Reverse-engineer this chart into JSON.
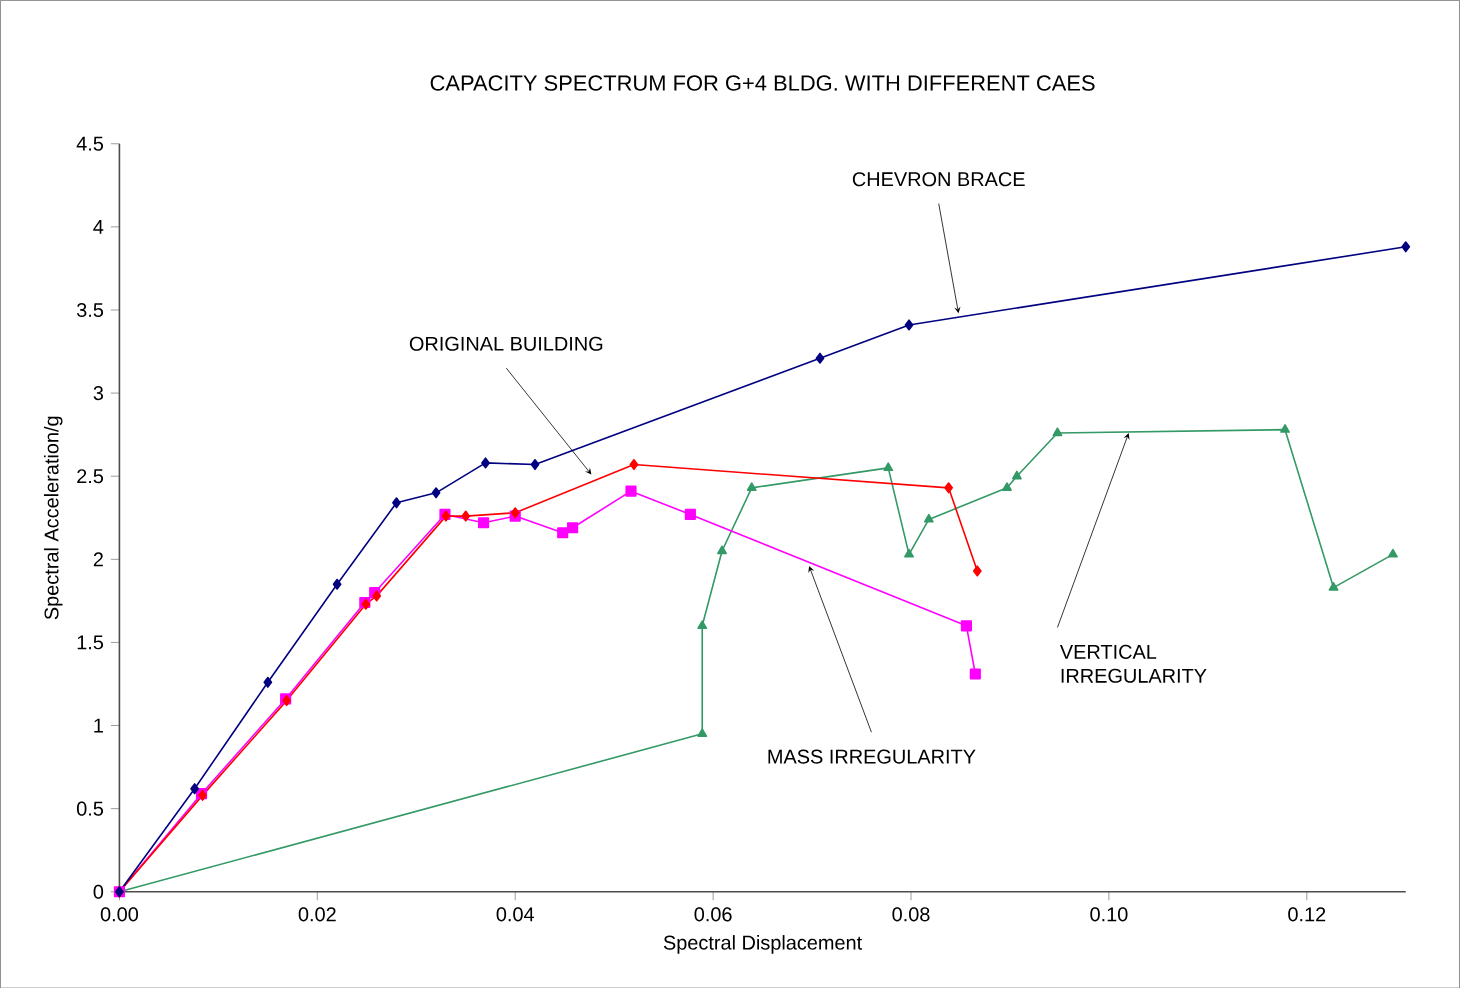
{
  "chart_data": {
    "type": "line",
    "title": "CAPACITY SPECTRUM FOR G+4 BLDG. WITH DIFFERENT CAES",
    "xlabel": "Spectral Displacement",
    "ylabel": "Spectral Acceleration/g",
    "xlim": [
      0,
      0.13
    ],
    "ylim": [
      0,
      4.5
    ],
    "xticks": [
      {
        "value": 0,
        "label": "0.00"
      },
      {
        "value": 0.02,
        "label": "0.02"
      },
      {
        "value": 0.04,
        "label": "0.04"
      },
      {
        "value": 0.06,
        "label": "0.06"
      },
      {
        "value": 0.08,
        "label": "0.08"
      },
      {
        "value": 0.1,
        "label": "0.10"
      },
      {
        "value": 0.12,
        "label": "0.12"
      }
    ],
    "yticks": [
      0,
      0.5,
      1,
      1.5,
      2,
      2.5,
      3,
      3.5,
      4,
      4.5
    ],
    "grid": false,
    "series": [
      {
        "color": "#000080",
        "marker": "diamond",
        "x": [
          0,
          0.0076,
          0.015,
          0.022,
          0.028,
          0.032,
          0.037,
          0.042,
          0.0708,
          0.0798,
          0.13
        ],
        "values": [
          0,
          0.62,
          1.26,
          1.85,
          2.34,
          2.4,
          2.58,
          2.57,
          3.21,
          3.41,
          3.88
        ]
      },
      {
        "color": "#ff0000",
        "marker": "diamond",
        "x": [
          0,
          0.0084,
          0.0169,
          0.0249,
          0.026,
          0.033,
          0.035,
          0.04,
          0.052,
          0.0838,
          0.0867
        ],
        "values": [
          0,
          0.58,
          1.15,
          1.73,
          1.78,
          2.26,
          2.26,
          2.28,
          2.57,
          2.43,
          1.93
        ]
      },
      {
        "color": "#ff00ff",
        "marker": "square",
        "x": [
          0,
          0.0083,
          0.0168,
          0.0248,
          0.0258,
          0.0329,
          0.0368,
          0.04,
          0.0448,
          0.0458,
          0.0517,
          0.0577,
          0.0856,
          0.0865
        ],
        "values": [
          0,
          0.59,
          1.16,
          1.74,
          1.8,
          2.27,
          2.22,
          2.26,
          2.16,
          2.19,
          2.41,
          2.27,
          1.6,
          1.31
        ]
      },
      {
        "color": "#339966",
        "marker": "triangle",
        "x": [
          0,
          0.0589,
          0.0589,
          0.0609,
          0.0639,
          0.0777,
          0.0798,
          0.0818,
          0.0897,
          0.0907,
          0.0948,
          0.1178,
          0.1227,
          0.1287
        ],
        "values": [
          0,
          0.95,
          1.6,
          2.05,
          2.43,
          2.55,
          2.03,
          2.24,
          2.43,
          2.5,
          2.76,
          2.78,
          1.83,
          2.03
        ]
      }
    ],
    "annotations": [
      {
        "text": "CHEVRON BRACE",
        "x": 0.0848,
        "y": 3.48
      },
      {
        "text": "ORIGINAL BUILDING",
        "x": 0.0477,
        "y": 2.51
      },
      {
        "text": "MASS IRREGULARITY",
        "x": 0.0697,
        "y": 1.96
      },
      {
        "text": "VERTICAL IRREGULARITY",
        "x": 0.102,
        "y": 2.76
      }
    ]
  }
}
